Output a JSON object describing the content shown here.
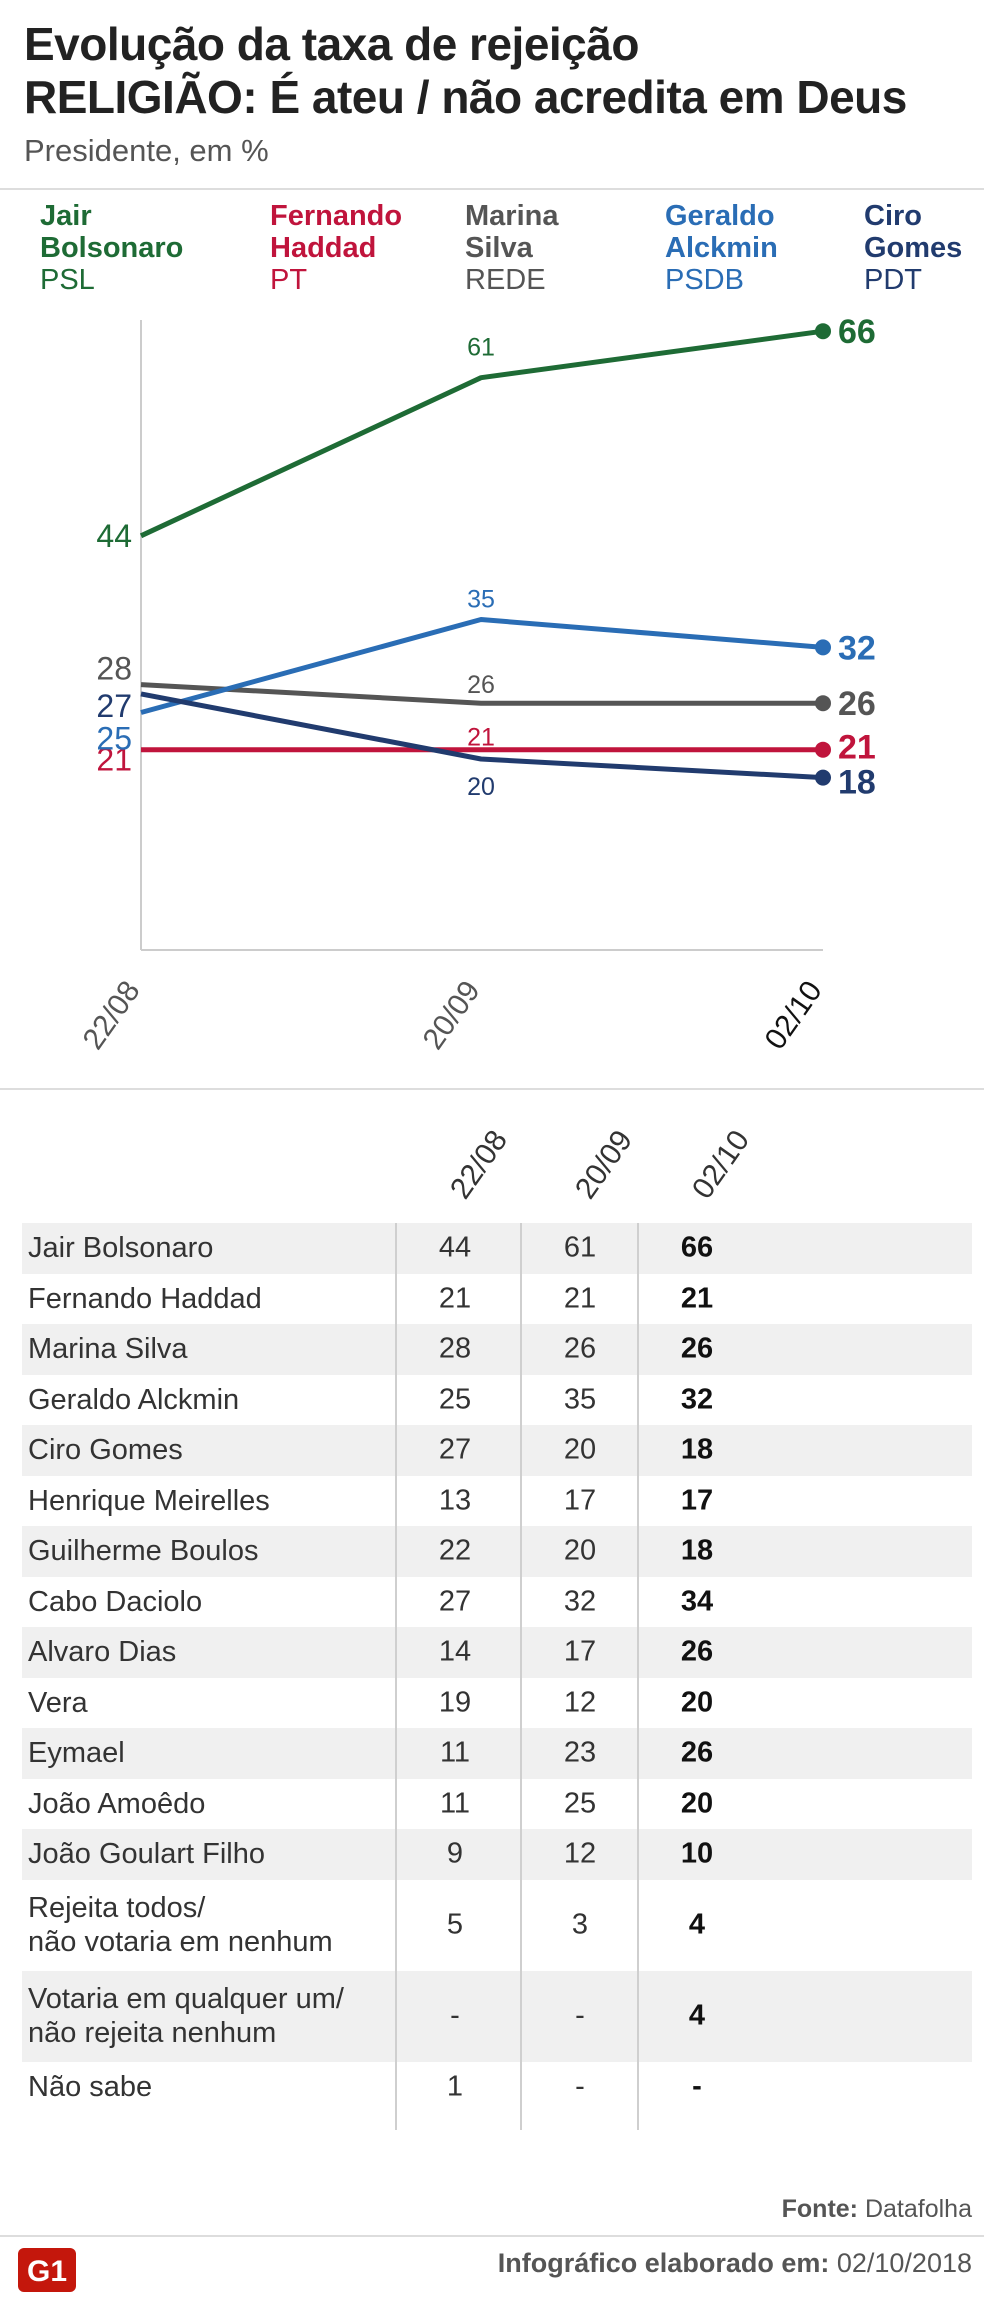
{
  "header": {
    "title_line1": "Evolução da taxa de rejeição",
    "title_line2": "RELIGIÃO: É ateu / não acredita em Deus",
    "subtitle": "Presidente, em %"
  },
  "legend": [
    {
      "name_line1": "Jair",
      "name_line2": "Bolsonaro",
      "party": "PSL",
      "color": "#1e6b35"
    },
    {
      "name_line1": "Fernando",
      "name_line2": "Haddad",
      "party": "PT",
      "color": "#c0143c"
    },
    {
      "name_line1": "Marina",
      "name_line2": "Silva",
      "party": "REDE",
      "color": "#555555"
    },
    {
      "name_line1": "Geraldo",
      "name_line2": "Alckmin",
      "party": "PSDB",
      "color": "#2a6db5"
    },
    {
      "name_line1": "Ciro",
      "name_line2": "Gomes",
      "party": "PDT",
      "color": "#213b6e"
    }
  ],
  "chart_data": {
    "type": "line",
    "x": [
      "22/08",
      "20/09",
      "02/10"
    ],
    "ylim": [
      0,
      66
    ],
    "grid": false,
    "series": [
      {
        "name": "Jair Bolsonaro",
        "values": [
          44,
          61,
          66
        ],
        "color": "#1e6b35"
      },
      {
        "name": "Fernando Haddad",
        "values": [
          21,
          21,
          21
        ],
        "color": "#c0143c"
      },
      {
        "name": "Marina Silva",
        "values": [
          28,
          26,
          26
        ],
        "color": "#555555"
      },
      {
        "name": "Geraldo Alckmin",
        "values": [
          25,
          35,
          32
        ],
        "color": "#2a6db5"
      },
      {
        "name": "Ciro Gomes",
        "values": [
          27,
          20,
          18
        ],
        "color": "#213b6e"
      }
    ]
  },
  "table": {
    "columns": [
      "22/08",
      "20/09",
      "02/10"
    ],
    "rows": [
      {
        "name": "Jair Bolsonaro",
        "values": [
          "44",
          "61",
          "66"
        ]
      },
      {
        "name": "Fernando Haddad",
        "values": [
          "21",
          "21",
          "21"
        ]
      },
      {
        "name": "Marina Silva",
        "values": [
          "28",
          "26",
          "26"
        ]
      },
      {
        "name": "Geraldo Alckmin",
        "values": [
          "25",
          "35",
          "32"
        ]
      },
      {
        "name": "Ciro Gomes",
        "values": [
          "27",
          "20",
          "18"
        ]
      },
      {
        "name": "Henrique Meirelles",
        "values": [
          "13",
          "17",
          "17"
        ]
      },
      {
        "name": "Guilherme Boulos",
        "values": [
          "22",
          "20",
          "18"
        ]
      },
      {
        "name": "Cabo Daciolo",
        "values": [
          "27",
          "32",
          "34"
        ]
      },
      {
        "name": "Alvaro Dias",
        "values": [
          "14",
          "17",
          "26"
        ]
      },
      {
        "name": "Vera",
        "values": [
          "19",
          "12",
          "20"
        ]
      },
      {
        "name": "Eymael",
        "values": [
          "11",
          "23",
          "26"
        ]
      },
      {
        "name": "João Amoêdo",
        "values": [
          "11",
          "25",
          "20"
        ]
      },
      {
        "name": "João Goulart Filho",
        "values": [
          "9",
          "12",
          "10"
        ]
      },
      {
        "name_line1": "Rejeita todos/",
        "name_line2": "não votaria em nenhum",
        "values": [
          "5",
          "3",
          "4"
        ]
      },
      {
        "name_line1": "Votaria em qualquer um/",
        "name_line2": "não rejeita nenhum",
        "values": [
          "-",
          "-",
          "4"
        ]
      },
      {
        "name": "Não sabe",
        "values": [
          "1",
          "-",
          "-"
        ]
      }
    ]
  },
  "footer": {
    "source_label": "Fonte:",
    "source": "Datafolha",
    "logo_text": "G1",
    "credit_label": "Infográfico elaborado em:",
    "credit_date": "02/10/2018"
  }
}
